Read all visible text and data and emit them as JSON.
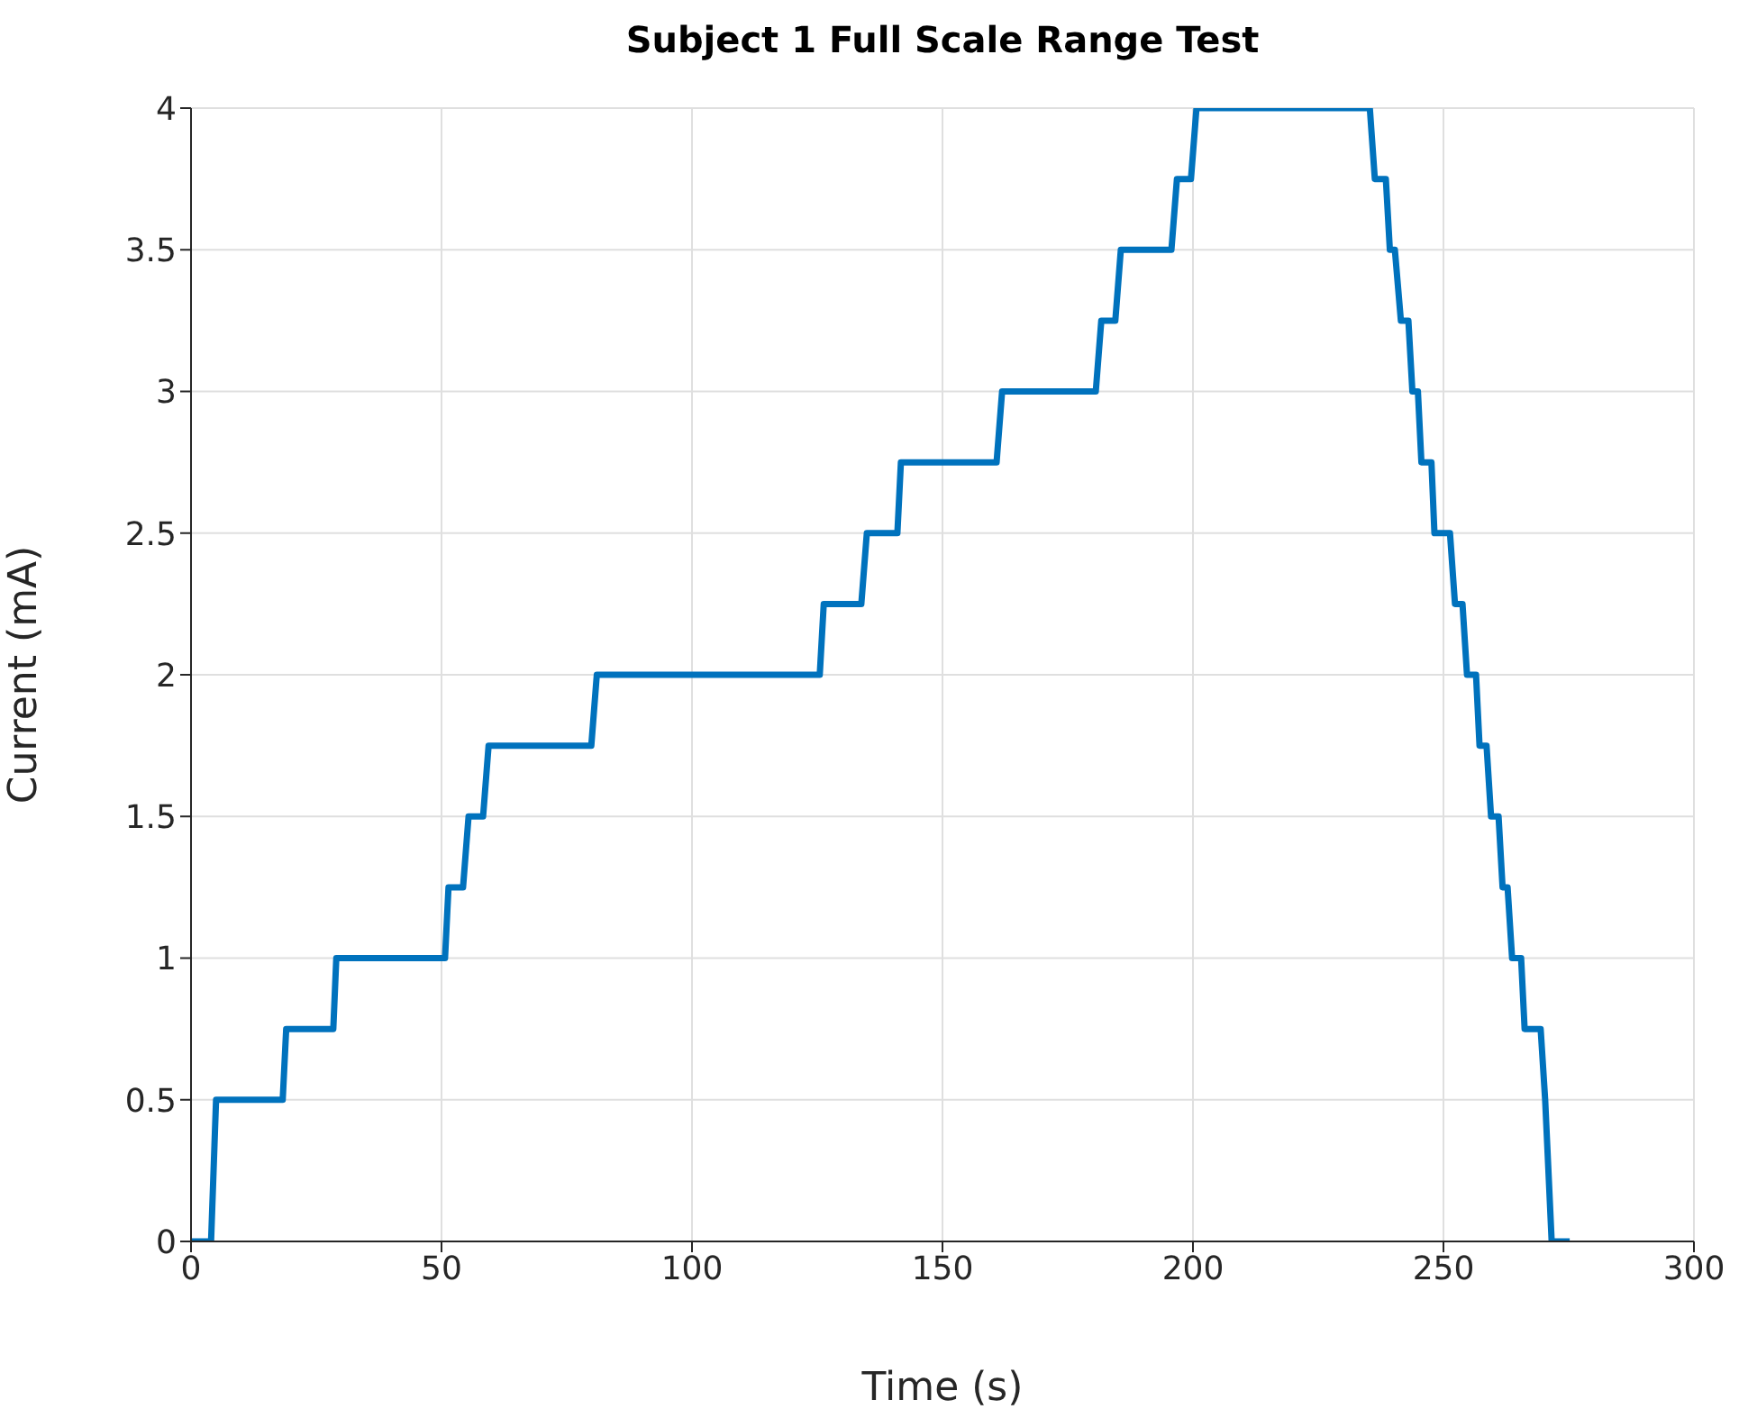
{
  "chart_data": {
    "type": "line",
    "title": "Subject 1 Full Scale Range Test",
    "xlabel": "Time (s)",
    "ylabel": "Current (mA)",
    "xlim": [
      0,
      300
    ],
    "xticks": [
      0,
      50,
      100,
      150,
      200,
      250,
      300
    ],
    "ylim": [
      0,
      4
    ],
    "yticks": [
      0,
      0.5,
      1,
      1.5,
      2,
      2.5,
      3,
      3.5,
      4
    ],
    "grid": true,
    "line_style": "solid",
    "marker": "none",
    "series": [
      {
        "color": "#0072bd",
        "x": [
          0,
          4,
          5,
          18.3,
          19,
          28.4,
          29,
          50.7,
          51.4,
          54.3,
          55.4,
          58.3,
          59.4,
          79.9,
          81,
          125.5,
          126.3,
          133.8,
          134.9,
          141,
          141.7,
          160.8,
          161.9,
          180.6,
          181.7,
          184.5,
          185.6,
          195.7,
          196.8,
          199.6,
          200.7,
          235.3,
          236.3,
          238.5,
          239.3,
          240.3,
          241.5,
          243,
          243.8,
          244.9,
          245.6,
          247.6,
          248.2,
          251.3,
          252.3,
          253.8,
          254.7,
          256.5,
          257.2,
          258.6,
          259.5,
          261,
          261.8,
          262.8,
          263.7,
          265.5,
          266.2,
          269.4,
          270.3,
          271.6,
          275.2
        ],
        "values": [
          0,
          0,
          0.5,
          0.5,
          0.75,
          0.75,
          1,
          1,
          1.25,
          1.25,
          1.5,
          1.5,
          1.75,
          1.75,
          2,
          2,
          2.25,
          2.25,
          2.5,
          2.5,
          2.75,
          2.75,
          3,
          3,
          3.25,
          3.25,
          3.5,
          3.5,
          3.75,
          3.75,
          4,
          4,
          3.75,
          3.75,
          3.5,
          3.5,
          3.25,
          3.25,
          3,
          3,
          2.75,
          2.75,
          2.5,
          2.5,
          2.25,
          2.25,
          2,
          2,
          1.75,
          1.75,
          1.5,
          1.5,
          1.25,
          1.25,
          1,
          1,
          0.75,
          0.75,
          0.5,
          0,
          0
        ]
      }
    ]
  }
}
